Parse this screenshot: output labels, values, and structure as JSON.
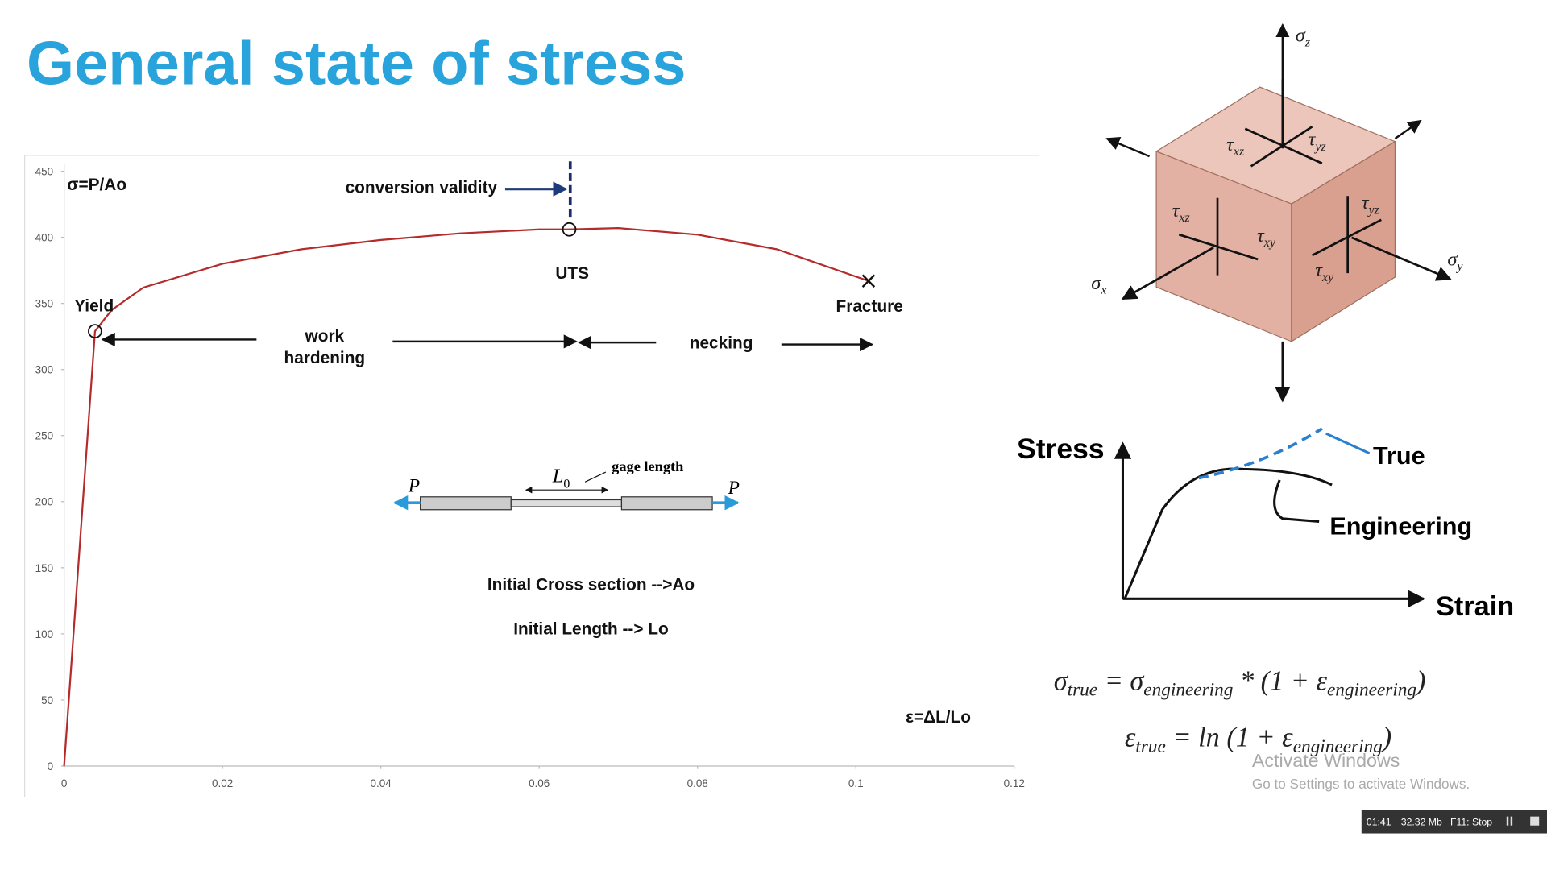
{
  "title": "General state of stress",
  "chart_data": {
    "type": "line",
    "color": "#b52a2a",
    "x": [
      0,
      0.0039,
      0.006,
      0.01,
      0.02,
      0.03,
      0.04,
      0.05,
      0.06,
      0.0638,
      0.07,
      0.08,
      0.09,
      0.1016
    ],
    "values": [
      0,
      329,
      345,
      362,
      380,
      391,
      398,
      403,
      406,
      406,
      407,
      402,
      391,
      367
    ],
    "xlim": [
      0,
      0.12
    ],
    "ylim": [
      0,
      450
    ],
    "xticks": [
      0,
      0.02,
      0.04,
      0.06,
      0.08,
      0.1,
      0.12
    ],
    "yticks": [
      0,
      50,
      100,
      150,
      200,
      250,
      300,
      350,
      400,
      450
    ],
    "ylabel": "σ=P/Ao",
    "xlabel": "ε=ΔL/Lo",
    "markers": [
      {
        "label": "Yield",
        "x": 0.0039,
        "y": 329,
        "shape": "circle"
      },
      {
        "label": "UTS",
        "x": 0.0638,
        "y": 406,
        "shape": "circle"
      },
      {
        "label": "Fracture",
        "x": 0.1016,
        "y": 367,
        "shape": "cross"
      }
    ],
    "annotations": [
      "conversion validity",
      "work",
      "hardening",
      "necking",
      "Initial Cross section -->Ao",
      "Initial Length --> Lo"
    ]
  },
  "specimen": {
    "load_left": "P",
    "load_right": "P",
    "length": "L",
    "length_sub": "0",
    "gage": "gage length"
  },
  "stress_cube": {
    "labels": [
      {
        "symbol": "σ",
        "sub": "z"
      },
      {
        "symbol": "σ",
        "sub": "y"
      },
      {
        "symbol": "σ",
        "sub": "x"
      },
      {
        "symbol": "τ",
        "sub": "xz"
      },
      {
        "symbol": "τ",
        "sub": "yz"
      },
      {
        "symbol": "τ",
        "sub": "xz"
      },
      {
        "symbol": "τ",
        "sub": "yz"
      },
      {
        "symbol": "τ",
        "sub": "xy"
      },
      {
        "symbol": "τ",
        "sub": "xy"
      }
    ]
  },
  "sketch": {
    "y_axis": "Stress",
    "x_axis": "Strain",
    "true": "True",
    "engineering": "Engineering"
  },
  "formulas": [
    [
      "σ",
      "true",
      " = σ",
      "engineering",
      " * (1 + ε",
      "engineering",
      ")"
    ],
    [
      "ε",
      "true",
      " = ln (1 + ε",
      "engineering",
      ")"
    ]
  ],
  "watermark": {
    "title": "Activate Windows",
    "subtitle": "Go to Settings to activate Windows."
  },
  "recorder": {
    "time": "01:41",
    "memory": "32.32 Mb",
    "stop": "F11: Stop"
  }
}
